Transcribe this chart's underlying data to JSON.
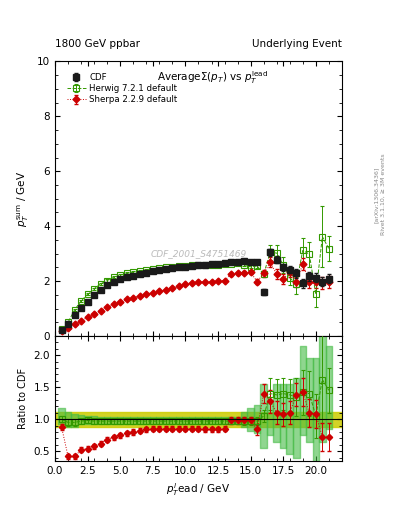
{
  "title_left": "1800 GeV ppbar",
  "title_right": "Underlying Event",
  "watermark": "CDF_2001_S4751469",
  "right_label1": "Rivet 3.1.10, ≥ 3M events",
  "right_label2": "[arXiv:1306.3436]",
  "xlim": [
    0,
    22
  ],
  "ylim_main": [
    0,
    10
  ],
  "ylim_ratio": [
    0.35,
    2.3
  ],
  "cdf_x": [
    0.5,
    1.0,
    1.5,
    2.0,
    2.5,
    3.0,
    3.5,
    4.0,
    4.5,
    5.0,
    5.5,
    6.0,
    6.5,
    7.0,
    7.5,
    8.0,
    8.5,
    9.0,
    9.5,
    10.0,
    10.5,
    11.0,
    11.5,
    12.0,
    12.5,
    13.0,
    13.5,
    14.0,
    14.5,
    15.0,
    15.5,
    16.0,
    16.5,
    17.0,
    17.5,
    18.0,
    18.5,
    19.0,
    19.5,
    20.0,
    20.5,
    21.0
  ],
  "cdf_y": [
    0.22,
    0.42,
    0.78,
    1.02,
    1.25,
    1.48,
    1.68,
    1.85,
    1.98,
    2.08,
    2.15,
    2.2,
    2.25,
    2.3,
    2.35,
    2.4,
    2.44,
    2.47,
    2.5,
    2.52,
    2.55,
    2.58,
    2.6,
    2.62,
    2.63,
    2.65,
    2.68,
    2.7,
    2.72,
    2.7,
    2.68,
    1.6,
    3.05,
    2.78,
    2.5,
    2.42,
    2.28,
    1.92,
    2.18,
    2.12,
    1.98,
    2.08
  ],
  "cdf_yerr": [
    0.03,
    0.04,
    0.04,
    0.04,
    0.04,
    0.04,
    0.04,
    0.04,
    0.04,
    0.04,
    0.04,
    0.04,
    0.04,
    0.04,
    0.04,
    0.04,
    0.04,
    0.04,
    0.04,
    0.04,
    0.04,
    0.04,
    0.04,
    0.04,
    0.04,
    0.04,
    0.04,
    0.04,
    0.04,
    0.04,
    0.04,
    0.12,
    0.12,
    0.12,
    0.12,
    0.14,
    0.16,
    0.16,
    0.16,
    0.16,
    0.16,
    0.16
  ],
  "herwig_x": [
    0.5,
    1.0,
    1.5,
    2.0,
    2.5,
    3.0,
    3.5,
    4.0,
    4.5,
    5.0,
    5.5,
    6.0,
    6.5,
    7.0,
    7.5,
    8.0,
    8.5,
    9.0,
    9.5,
    10.0,
    10.5,
    11.0,
    11.5,
    12.0,
    12.5,
    13.0,
    13.5,
    14.0,
    14.5,
    15.0,
    15.5,
    16.0,
    16.5,
    17.0,
    17.5,
    18.0,
    18.5,
    19.0,
    19.5,
    20.0,
    20.5,
    21.0
  ],
  "herwig_y": [
    0.25,
    0.5,
    0.95,
    1.28,
    1.52,
    1.72,
    1.9,
    2.02,
    2.14,
    2.22,
    2.28,
    2.32,
    2.36,
    2.4,
    2.44,
    2.47,
    2.5,
    2.52,
    2.54,
    2.56,
    2.58,
    2.6,
    2.6,
    2.6,
    2.6,
    2.62,
    2.64,
    2.66,
    2.6,
    2.52,
    2.55,
    2.25,
    3.05,
    3.02,
    2.58,
    2.12,
    1.88,
    3.12,
    2.98,
    1.52,
    3.62,
    3.18
  ],
  "herwig_yerr": [
    0.04,
    0.04,
    0.04,
    0.04,
    0.04,
    0.04,
    0.04,
    0.04,
    0.04,
    0.04,
    0.04,
    0.04,
    0.04,
    0.04,
    0.04,
    0.04,
    0.04,
    0.04,
    0.04,
    0.04,
    0.04,
    0.04,
    0.04,
    0.04,
    0.04,
    0.04,
    0.04,
    0.04,
    0.06,
    0.06,
    0.06,
    0.1,
    0.28,
    0.28,
    0.28,
    0.28,
    0.35,
    0.45,
    0.45,
    0.45,
    1.1,
    0.45
  ],
  "sherpa_x": [
    0.5,
    1.0,
    1.5,
    2.0,
    2.5,
    3.0,
    3.5,
    4.0,
    4.5,
    5.0,
    5.5,
    6.0,
    6.5,
    7.0,
    7.5,
    8.0,
    8.5,
    9.0,
    9.5,
    10.0,
    10.5,
    11.0,
    11.5,
    12.0,
    12.5,
    13.0,
    13.5,
    14.0,
    14.5,
    15.0,
    15.5,
    16.0,
    16.5,
    17.0,
    17.5,
    18.0,
    18.5,
    19.0,
    19.5,
    20.0,
    20.5,
    21.0
  ],
  "sherpa_y": [
    0.2,
    0.28,
    0.42,
    0.55,
    0.68,
    0.8,
    0.92,
    1.05,
    1.15,
    1.25,
    1.33,
    1.4,
    1.47,
    1.53,
    1.58,
    1.63,
    1.68,
    1.75,
    1.83,
    1.88,
    1.93,
    1.97,
    1.98,
    1.98,
    2.0,
    2.02,
    2.25,
    2.28,
    2.3,
    2.32,
    1.98,
    2.28,
    2.68,
    2.25,
    2.08,
    2.32,
    1.98,
    2.62,
    1.98,
    1.98,
    1.93,
    1.98
  ],
  "sherpa_yerr": [
    0.02,
    0.02,
    0.02,
    0.02,
    0.02,
    0.02,
    0.02,
    0.02,
    0.02,
    0.02,
    0.02,
    0.02,
    0.02,
    0.02,
    0.02,
    0.02,
    0.02,
    0.02,
    0.02,
    0.02,
    0.02,
    0.02,
    0.02,
    0.02,
    0.02,
    0.02,
    0.05,
    0.05,
    0.05,
    0.05,
    0.08,
    0.12,
    0.18,
    0.18,
    0.18,
    0.18,
    0.18,
    0.22,
    0.22,
    0.22,
    0.22,
    0.22
  ],
  "ratio_herwig_y": [
    1.0,
    0.95,
    0.95,
    0.97,
    0.98,
    0.97,
    0.97,
    0.97,
    0.97,
    0.97,
    0.97,
    0.97,
    0.97,
    0.97,
    0.97,
    0.97,
    0.97,
    0.97,
    0.97,
    0.97,
    0.97,
    0.97,
    0.97,
    0.97,
    0.97,
    0.97,
    0.97,
    0.97,
    0.97,
    0.97,
    0.97,
    1.05,
    1.4,
    1.38,
    1.4,
    1.38,
    1.35,
    1.42,
    1.4,
    1.05,
    1.62,
    1.45
  ],
  "ratio_herwig_err": [
    0.05,
    0.05,
    0.05,
    0.04,
    0.04,
    0.04,
    0.04,
    0.04,
    0.04,
    0.04,
    0.04,
    0.04,
    0.04,
    0.04,
    0.04,
    0.04,
    0.04,
    0.04,
    0.04,
    0.04,
    0.04,
    0.04,
    0.04,
    0.04,
    0.04,
    0.04,
    0.04,
    0.04,
    0.06,
    0.06,
    0.06,
    0.1,
    0.25,
    0.25,
    0.25,
    0.25,
    0.3,
    0.35,
    0.35,
    0.35,
    0.9,
    0.35
  ],
  "ratio_sherpa_y": [
    0.88,
    0.42,
    0.42,
    0.52,
    0.54,
    0.58,
    0.62,
    0.68,
    0.72,
    0.75,
    0.78,
    0.8,
    0.82,
    0.84,
    0.85,
    0.85,
    0.85,
    0.85,
    0.85,
    0.85,
    0.85,
    0.85,
    0.84,
    0.84,
    0.84,
    0.85,
    0.98,
    0.98,
    0.98,
    0.98,
    0.84,
    1.4,
    1.28,
    1.1,
    1.08,
    1.1,
    1.38,
    1.42,
    1.1,
    1.08,
    0.72,
    0.72
  ],
  "ratio_sherpa_err": [
    0.05,
    0.04,
    0.04,
    0.04,
    0.04,
    0.04,
    0.04,
    0.04,
    0.04,
    0.04,
    0.04,
    0.04,
    0.04,
    0.04,
    0.04,
    0.04,
    0.04,
    0.04,
    0.04,
    0.04,
    0.04,
    0.04,
    0.04,
    0.04,
    0.04,
    0.04,
    0.06,
    0.06,
    0.06,
    0.06,
    0.08,
    0.15,
    0.18,
    0.18,
    0.18,
    0.18,
    0.18,
    0.22,
    0.22,
    0.22,
    0.22,
    0.22
  ],
  "green_band_x": [
    0.5,
    1.0,
    1.5,
    2.0,
    2.5,
    3.0,
    3.5,
    4.0,
    4.5,
    5.0,
    5.5,
    6.0,
    6.5,
    7.0,
    7.5,
    8.0,
    8.5,
    9.0,
    9.5,
    10.0,
    10.5,
    11.0,
    11.5,
    12.0,
    12.5,
    13.0,
    13.5,
    14.0,
    14.5,
    15.0,
    15.5,
    16.0,
    16.5,
    17.0,
    17.5,
    18.0,
    18.5,
    19.0,
    19.5,
    20.0,
    20.5,
    21.0
  ],
  "green_band_lo": [
    0.92,
    0.88,
    0.88,
    0.92,
    0.93,
    0.93,
    0.93,
    0.93,
    0.93,
    0.93,
    0.93,
    0.93,
    0.93,
    0.93,
    0.93,
    0.93,
    0.93,
    0.93,
    0.93,
    0.93,
    0.93,
    0.93,
    0.93,
    0.93,
    0.93,
    0.93,
    0.93,
    0.93,
    0.88,
    0.82,
    0.78,
    0.55,
    0.75,
    0.65,
    0.55,
    0.45,
    0.4,
    0.75,
    0.65,
    0.3,
    0.65,
    0.85
  ],
  "green_band_hi": [
    1.18,
    1.12,
    1.08,
    1.06,
    1.05,
    1.05,
    1.04,
    1.04,
    1.04,
    1.04,
    1.04,
    1.04,
    1.04,
    1.04,
    1.04,
    1.04,
    1.04,
    1.04,
    1.04,
    1.04,
    1.04,
    1.04,
    1.04,
    1.04,
    1.04,
    1.04,
    1.04,
    1.04,
    1.12,
    1.18,
    1.22,
    1.55,
    1.25,
    1.55,
    1.55,
    1.55,
    1.65,
    2.15,
    1.95,
    1.95,
    2.35,
    2.15
  ],
  "yellow_band_lo": 0.88,
  "yellow_band_hi": 1.12,
  "cdf_color": "#1a1a1a",
  "herwig_color": "#339900",
  "sherpa_color": "#cc0000",
  "band_yellow_color": "#cccc00",
  "band_green_color": "#44bb44"
}
